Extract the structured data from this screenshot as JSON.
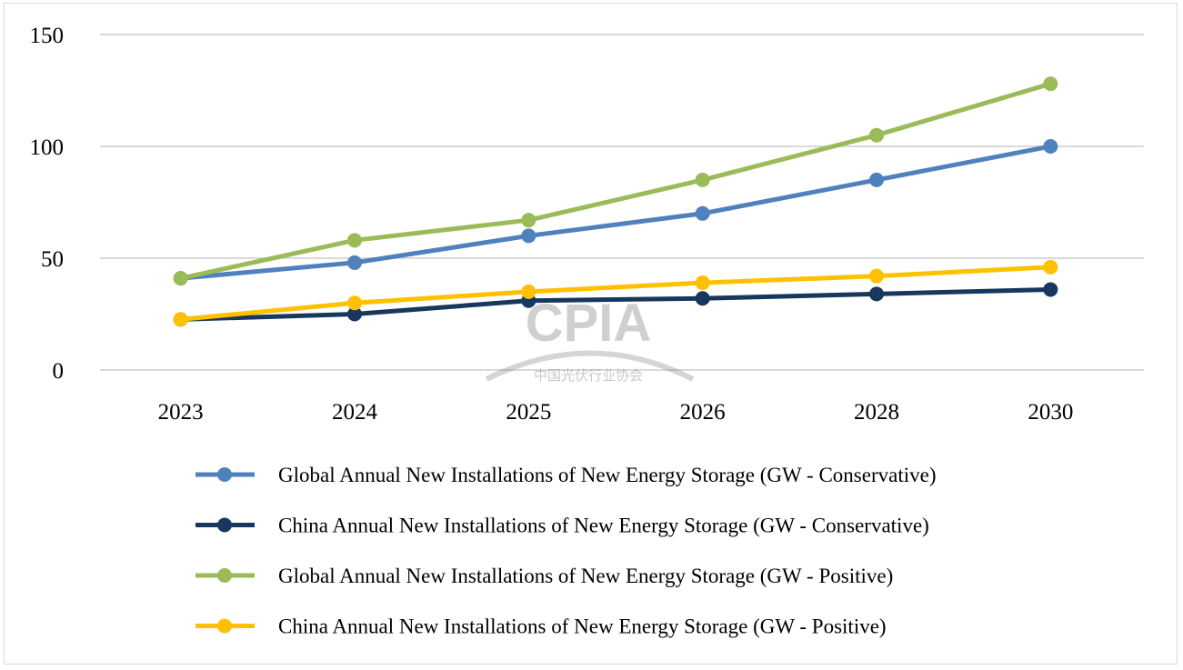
{
  "chart_data": {
    "type": "line",
    "title": "",
    "xlabel": "",
    "ylabel": "",
    "categories": [
      "2023",
      "2024",
      "2025",
      "2026",
      "2028",
      "2030"
    ],
    "ylim": [
      0,
      150
    ],
    "yticks": [
      0,
      50,
      100,
      150
    ],
    "grid": true,
    "legend_placement": "bottom",
    "series": [
      {
        "name": "Global Annual New Installations of New Energy Storage (GW - Conservative)",
        "color": "#4f81bd",
        "values": [
          41,
          48,
          60,
          70,
          85,
          100
        ]
      },
      {
        "name": "China Annual New Installations of New Energy Storage (GW - Conservative)",
        "color": "#17375e",
        "values": [
          22.6,
          25,
          31,
          32,
          34,
          36
        ]
      },
      {
        "name": "Global Annual New Installations of New Energy Storage (GW - Positive)",
        "color": "#9bbb59",
        "values": [
          41,
          58,
          67,
          85,
          105,
          128
        ]
      },
      {
        "name": "China Annual New Installations of New Energy Storage (GW - Positive)",
        "color": "#ffc000",
        "values": [
          22.6,
          30,
          35,
          39,
          42,
          46
        ]
      }
    ]
  },
  "watermark": {
    "logo_text": "CPIA",
    "subtitle": "中国光伏行业协会"
  }
}
